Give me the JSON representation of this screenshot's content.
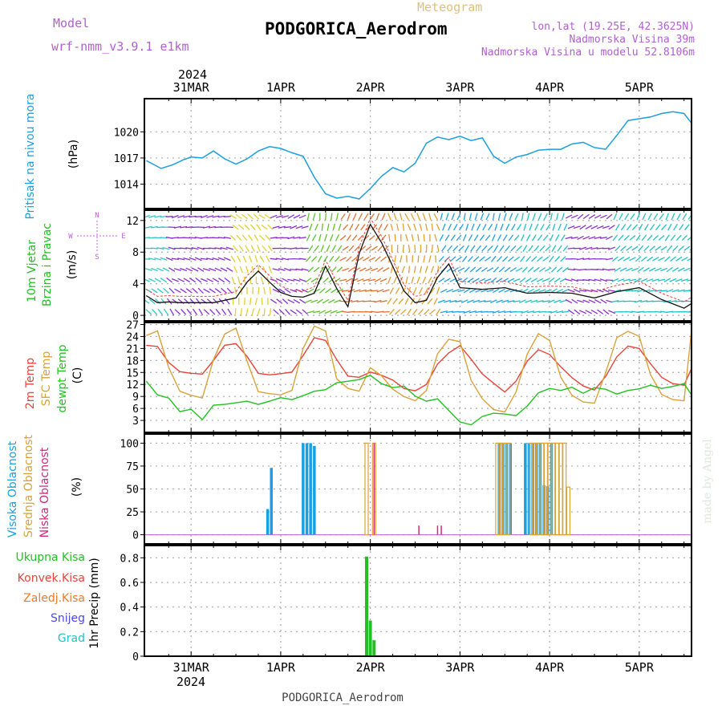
{
  "header": {
    "model_label": "Model",
    "model_name": "wrf-nmm_v3.9.1  e1km",
    "chart_type": "Meteogram",
    "station": "PODGORICA_Aerodrom",
    "lonlat": "lon,lat (19.25E, 42.3625N)",
    "altitude": "Nadmorska Visina 39m",
    "model_altitude": "Nadmorska Visina u modelu 52.8106m",
    "footer_station": "PODGORICA_Aerodrom",
    "credit": "made by Angel"
  },
  "colors": {
    "pressure": "#1a9fe0",
    "temp2m": "#e8423a",
    "sfc_temp": "#d9a23a",
    "dewpoint": "#22c022",
    "high_cloud": "#1a9fe0",
    "mid_cloud": "#d9a23a",
    "low_cloud": "#d0287a",
    "total_precip": "#22c022",
    "convective": "#e8423a",
    "frozen": "#f07a2a",
    "snow": "#4a4ae8",
    "graupel": "#22c0c0",
    "wind_label": "#22c022",
    "compass": "#c060e0"
  },
  "time_axis": {
    "top_year": "2024",
    "bottom_year": "2024",
    "labels": [
      "31MAR",
      "1APR",
      "2APR",
      "3APR",
      "4APR",
      "5APR"
    ],
    "label_hours": [
      0,
      24,
      48,
      72,
      96,
      120
    ],
    "x_range_hours": [
      -12.5,
      134
    ]
  },
  "panels": {
    "pressure": {
      "label": "Pritisak na nivou mora",
      "unit": "(hPa)",
      "yticks": [
        "1014",
        "1017",
        "1020"
      ]
    },
    "wind": {
      "label_line1": "10m Vjetar",
      "label_line2": "Brzina i Pravac",
      "unit": "(m/s)",
      "compass_text": "N",
      "compass_w": "W",
      "compass_e": "E",
      "compass_s": "S",
      "yticks": [
        "0",
        "4",
        "8",
        "12"
      ]
    },
    "temperature": {
      "label_2m": "2m Temp",
      "label_sfc": "SFC Temp",
      "label_dew": "dewpt Temp",
      "unit": "(C)",
      "yticks": [
        "3",
        "6",
        "9",
        "12",
        "15",
        "18",
        "21",
        "24",
        "27"
      ]
    },
    "clouds": {
      "label_high": "Visoka Oblacnost",
      "label_mid": "Srednja Oblacnost",
      "label_low": "Niska Oblacnost",
      "unit": "(%)",
      "yticks": [
        "0",
        "25",
        "50",
        "75",
        "100"
      ]
    },
    "precip": {
      "legend": [
        "Ukupna Kisa",
        "Konvek.Kisa",
        "Zaledj.Kisa",
        "Snijeg",
        "Grad"
      ],
      "unit": "1hr Precip (mm)",
      "yticks": [
        "0",
        "0.2",
        "0.4",
        "0.6",
        "0.8"
      ]
    }
  },
  "chart_data": [
    {
      "type": "line",
      "title": "Pritisak na nivou mora",
      "ylabel": "(hPa)",
      "ylim": [
        1011.2,
        1023.8
      ],
      "series": [
        {
          "name": "Pritisak na nivou mora",
          "x": [
            -12,
            -8,
            -5,
            -2,
            0,
            3,
            6,
            9,
            12,
            15,
            18,
            21,
            24,
            27,
            30,
            33,
            36,
            39,
            42,
            45,
            48,
            51,
            54,
            57,
            60,
            63,
            66,
            69,
            72,
            75,
            78,
            81,
            84,
            87,
            90,
            93,
            96,
            99,
            102,
            105,
            108,
            111,
            114,
            117,
            120,
            123,
            126,
            129,
            132,
            134
          ],
          "values": [
            1016.7,
            1015.8,
            1016.2,
            1016.8,
            1017.1,
            1017.0,
            1017.8,
            1016.9,
            1016.3,
            1016.9,
            1017.8,
            1018.3,
            1018.1,
            1017.6,
            1017.2,
            1014.8,
            1012.9,
            1012.4,
            1012.6,
            1012.3,
            1013.5,
            1014.9,
            1015.9,
            1015.4,
            1016.4,
            1018.7,
            1019.4,
            1019.1,
            1019.5,
            1019.0,
            1019.3,
            1017.2,
            1016.4,
            1017.1,
            1017.4,
            1017.9,
            1018.0,
            1018.0,
            1018.6,
            1018.8,
            1018.2,
            1018.0,
            1019.6,
            1021.3,
            1021.5,
            1021.7,
            1022.1,
            1022.3,
            1022.1,
            1021.0
          ]
        }
      ]
    },
    {
      "type": "line",
      "title": "10m Vjetar Brzina i Pravac",
      "ylabel": "(m/s)",
      "ylim": [
        -0.7,
        13.3
      ],
      "series": [
        {
          "name": "10m Vjetar",
          "x": [
            -12,
            -9,
            -6,
            -3,
            0,
            6,
            12,
            15,
            18,
            21,
            24,
            27,
            30,
            33,
            36,
            39,
            42,
            45,
            48,
            51,
            54,
            57,
            60,
            63,
            66,
            69,
            72,
            78,
            84,
            90,
            96,
            102,
            108,
            114,
            120,
            126,
            132,
            134
          ],
          "values": [
            2.5,
            1.6,
            1.7,
            1.6,
            1.6,
            1.6,
            2.2,
            4.2,
            5.6,
            4.2,
            2.9,
            2.4,
            2.3,
            2.8,
            6.2,
            3.4,
            1.1,
            7.8,
            11.5,
            9.2,
            6.2,
            3.1,
            1.6,
            1.9,
            4.8,
            6.5,
            3.5,
            3.3,
            3.5,
            2.8,
            2.9,
            2.8,
            2.2,
            3.0,
            3.5,
            2.0,
            0.9,
            1.5
          ]
        }
      ]
    },
    {
      "type": "line",
      "title": "2m Temp / SFC Temp / dewpt Temp",
      "ylabel": "(C)",
      "ylim": [
        0,
        27.5
      ],
      "series": [
        {
          "name": "2m Temp",
          "x": [
            -12,
            -9,
            -6,
            -3,
            0,
            3,
            6,
            9,
            12,
            15,
            18,
            21,
            24,
            27,
            30,
            33,
            36,
            39,
            42,
            45,
            48,
            51,
            54,
            57,
            60,
            63,
            66,
            69,
            72,
            75,
            78,
            81,
            84,
            87,
            90,
            93,
            96,
            99,
            102,
            105,
            108,
            111,
            114,
            117,
            120,
            123,
            126,
            129,
            132,
            134
          ],
          "values": [
            21.8,
            21.5,
            17.5,
            15.2,
            14.8,
            14.6,
            18.0,
            21.8,
            22.2,
            19.0,
            14.8,
            14.4,
            14.7,
            15.1,
            19.2,
            23.7,
            23.0,
            18.2,
            14.1,
            13.8,
            15.1,
            14.3,
            13.1,
            11.0,
            10.4,
            12.0,
            17.1,
            19.9,
            21.7,
            18.3,
            14.6,
            12.3,
            10.1,
            12.8,
            17.8,
            20.7,
            19.5,
            16.4,
            13.7,
            11.6,
            10.6,
            14.0,
            18.9,
            21.6,
            21.0,
            17.2,
            13.8,
            12.2,
            11.8,
            16.0
          ]
        },
        {
          "name": "SFC Temp",
          "x": [
            -12,
            -9,
            -6,
            -3,
            0,
            3,
            6,
            9,
            12,
            15,
            18,
            21,
            24,
            27,
            30,
            33,
            36,
            39,
            42,
            45,
            48,
            51,
            54,
            57,
            60,
            63,
            66,
            69,
            72,
            75,
            78,
            81,
            84,
            87,
            90,
            93,
            96,
            99,
            102,
            105,
            108,
            111,
            114,
            117,
            120,
            123,
            126,
            129,
            132,
            134
          ],
          "values": [
            24.2,
            25.4,
            16.2,
            10.3,
            9.3,
            8.6,
            18.2,
            24.6,
            26.1,
            17.8,
            10.2,
            9.7,
            9.4,
            10.5,
            21.0,
            26.6,
            25.4,
            13.4,
            11.0,
            10.3,
            16.2,
            14.2,
            10.8,
            9.0,
            7.9,
            10.5,
            19.7,
            23.3,
            22.7,
            13.0,
            8.4,
            5.7,
            5.1,
            10.1,
            19.6,
            24.7,
            23.0,
            13.8,
            9.3,
            7.6,
            7.3,
            14.9,
            23.7,
            25.3,
            24.0,
            14.5,
            9.5,
            8.2,
            7.9,
            25.5
          ]
        },
        {
          "name": "dewpt Temp",
          "x": [
            -12,
            -9,
            -6,
            -3,
            0,
            3,
            6,
            9,
            12,
            15,
            18,
            21,
            24,
            27,
            30,
            33,
            36,
            39,
            42,
            45,
            48,
            51,
            54,
            57,
            60,
            63,
            66,
            69,
            72,
            75,
            78,
            81,
            84,
            87,
            90,
            93,
            96,
            99,
            102,
            105,
            108,
            111,
            114,
            117,
            120,
            123,
            126,
            129,
            132,
            134
          ],
          "values": [
            12.8,
            9.4,
            8.6,
            5.2,
            5.8,
            3.2,
            6.8,
            7.0,
            7.4,
            7.8,
            7.0,
            7.8,
            8.7,
            8.2,
            9.2,
            10.3,
            10.7,
            12.4,
            12.8,
            13.2,
            14.3,
            12.2,
            11.2,
            11.6,
            9.1,
            7.8,
            8.4,
            5.5,
            2.6,
            1.9,
            4.0,
            4.8,
            4.6,
            4.2,
            6.6,
            9.9,
            11.0,
            10.5,
            11.3,
            9.8,
            11.2,
            10.8,
            9.6,
            10.5,
            10.9,
            11.8,
            11.0,
            11.5,
            12.2,
            9.4
          ]
        }
      ]
    },
    {
      "type": "bar",
      "title": "Visoka / Srednja / Niska Oblacnost",
      "ylabel": "(%)",
      "ylim": [
        -10,
        110
      ],
      "series": [
        {
          "name": "Visoka Oblacnost",
          "x": [
            20.5,
            21.5,
            30,
            31,
            32,
            33,
            82.5,
            83.5,
            84.5,
            85.5,
            89.5,
            90.5,
            91.5,
            92.5,
            93.5,
            94.5,
            95.5,
            96.5
          ],
          "values": [
            28,
            73,
            100,
            100,
            100,
            97,
            100,
            100,
            100,
            100,
            100,
            100,
            100,
            100,
            100,
            54,
            53,
            100
          ]
        },
        {
          "name": "Srednja Oblacnost",
          "x": [
            47,
            49,
            82,
            83,
            84,
            85,
            91,
            92,
            93,
            94,
            95,
            96,
            97,
            98,
            99,
            100,
            101
          ],
          "values": [
            100,
            100,
            100,
            100,
            100,
            100,
            100,
            100,
            100,
            100,
            100,
            100,
            100,
            100,
            100,
            100,
            52
          ]
        },
        {
          "name": "Niska Oblacnost",
          "x": [
            49,
            61,
            66,
            67
          ],
          "values": [
            100,
            10,
            10,
            10
          ]
        }
      ]
    },
    {
      "type": "bar",
      "title": "1hr Precip",
      "ylabel": "1hr Precip (mm)",
      "ylim": [
        0,
        0.9
      ],
      "series": [
        {
          "name": "Ukupna Kisa",
          "x": [
            47,
            48,
            49
          ],
          "values": [
            0.81,
            0.29,
            0.13
          ]
        }
      ]
    }
  ]
}
